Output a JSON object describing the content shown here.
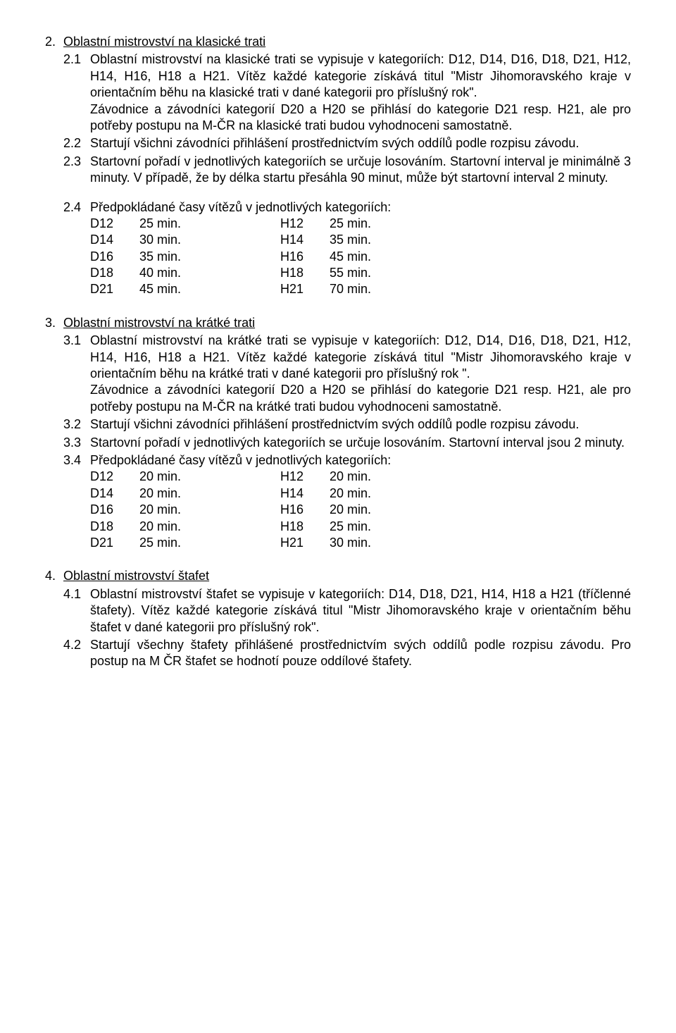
{
  "s2": {
    "num": "2.",
    "title": "Oblastní mistrovství na klasické trati",
    "p1": {
      "num": "2.1",
      "text": "Oblastní mistrovství na klasické trati se vypisuje v kategoriích: D12, D14, D16, D18, D21, H12, H14, H16, H18 a H21. Vítěz každé kategorie získává titul \"Mistr Jihomoravského kraje v orientačním běhu na klasické trati v dané kategorii pro příslušný rok\".",
      "cont": "Závodnice a závodníci kategorií D20 a H20 se přihlásí do kategorie D21 resp. H21, ale pro potřeby postupu na M-ČR na klasické trati budou vyhodnoceni samostatně."
    },
    "p2": {
      "num": "2.2",
      "text": "Startují všichni závodníci  přihlášení prostřednictvím svých oddílů podle rozpisu závodu."
    },
    "p3": {
      "num": "2.3",
      "text": "Startovní pořadí v jednotlivých kategoriích se určuje losováním. Startovní interval je minimálně 3 minuty. V případě, že by délka startu přesáhla 90 minut, může být startovní interval 2 minuty."
    },
    "p4": {
      "num": "2.4",
      "text": "Předpokládané časy vítězů v jednotlivých kategoriích:",
      "rows": [
        {
          "c1": "D12",
          "v1": "25 min.",
          "c2": "H12",
          "v2": "25 min."
        },
        {
          "c1": "D14",
          "v1": "30 min.",
          "c2": "H14",
          "v2": "35 min."
        },
        {
          "c1": "D16",
          "v1": "35 min.",
          "c2": "H16",
          "v2": "45 min."
        },
        {
          "c1": "D18",
          "v1": "40 min.",
          "c2": "H18",
          "v2": "55 min."
        },
        {
          "c1": "D21",
          "v1": "45 min.",
          "c2": "H21",
          "v2": "70 min."
        }
      ]
    }
  },
  "s3": {
    "num": "3.",
    "title": "Oblastní mistrovství na krátké trati",
    "p1": {
      "num": "3.1",
      "text": "Oblastní mistrovství na krátké trati se vypisuje v kategoriích: D12, D14, D16, D18, D21, H12, H14, H16, H18 a H21. Vítěz každé kategorie získává titul \"Mistr Jihomoravského kraje v orientačním běhu na krátké trati v dané kategorii pro příslušný rok \".",
      "cont": "Závodnice a závodníci kategorií D20 a H20 se přihlásí do kategorie D21 resp. H21, ale pro potřeby postupu na M-ČR na krátké trati budou vyhodnoceni samostatně."
    },
    "p2": {
      "num": "3.2",
      "text": "Startují všichni závodníci přihlášení prostřednictvím svých oddílů podle rozpisu závodu."
    },
    "p3": {
      "num": "3.3",
      "text": "Startovní pořadí v jednotlivých kategoriích se určuje losováním. Startovní interval jsou 2 minuty."
    },
    "p4": {
      "num": "3.4",
      "text": "Předpokládané časy vítězů v jednotlivých kategoriích:",
      "rows": [
        {
          "c1": "D12",
          "v1": "20 min.",
          "c2": "H12",
          "v2": "20 min."
        },
        {
          "c1": "D14",
          "v1": "20 min.",
          "c2": "H14",
          "v2": "20 min."
        },
        {
          "c1": "D16",
          "v1": "20 min.",
          "c2": "H16",
          "v2": "20 min."
        },
        {
          "c1": "D18",
          "v1": "20 min.",
          "c2": "H18",
          "v2": "25 min."
        },
        {
          "c1": "D21",
          "v1": "25 min.",
          "c2": "H21",
          "v2": "30 min."
        }
      ]
    }
  },
  "s4": {
    "num": "4.",
    "title": "Oblastní mistrovství štafet",
    "p1": {
      "num": "4.1",
      "text": "Oblastní mistrovství štafet se vypisuje v kategoriích: D14, D18, D21, H14, H18 a H21 (tříčlenné štafety). Vítěz každé kategorie získává titul \"Mistr Jihomoravského kraje v orientačním běhu štafet v dané kategorii pro příslušný rok\"."
    },
    "p2": {
      "num": "4.2",
      "text": "Startují všechny štafety přihlášené prostřednictvím svých oddílů podle rozpisu závodu. Pro postup na M ČR štafet se hodnotí pouze oddílové štafety."
    }
  }
}
